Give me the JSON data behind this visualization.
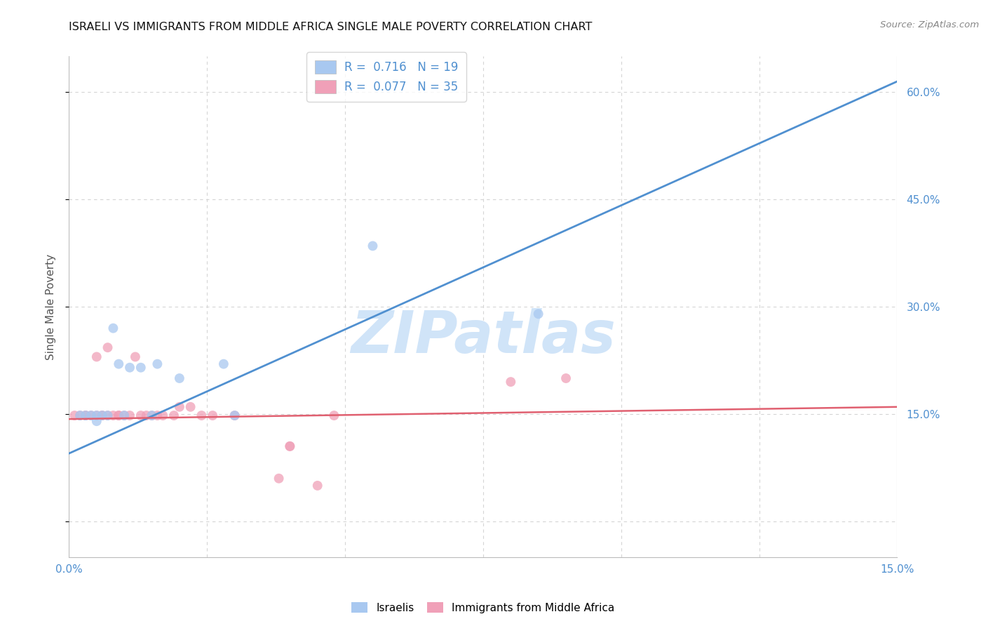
{
  "title": "ISRAELI VS IMMIGRANTS FROM MIDDLE AFRICA SINGLE MALE POVERTY CORRELATION CHART",
  "source": "Source: ZipAtlas.com",
  "ylabel": "Single Male Poverty",
  "xlim": [
    0.0,
    0.15
  ],
  "ylim": [
    -0.05,
    0.65
  ],
  "yticks": [
    0.0,
    0.15,
    0.3,
    0.45,
    0.6
  ],
  "ytick_labels": [
    "",
    "15.0%",
    "30.0%",
    "45.0%",
    "60.0%"
  ],
  "xticks": [
    0.0,
    0.025,
    0.05,
    0.075,
    0.1,
    0.125,
    0.15
  ],
  "xtick_labels": [
    "0.0%",
    "",
    "",
    "",
    "",
    "",
    "15.0%"
  ],
  "israeli_color": "#a8c8f0",
  "immigrant_color": "#f0a0b8",
  "israeli_R": "0.716",
  "israeli_N": "19",
  "immigrant_R": "0.077",
  "immigrant_N": "35",
  "israeli_x": [
    0.002,
    0.003,
    0.004,
    0.005,
    0.005,
    0.006,
    0.007,
    0.008,
    0.009,
    0.01,
    0.011,
    0.013,
    0.015,
    0.016,
    0.02,
    0.028,
    0.03,
    0.055,
    0.085
  ],
  "israeli_y": [
    0.148,
    0.148,
    0.148,
    0.14,
    0.148,
    0.148,
    0.148,
    0.27,
    0.22,
    0.148,
    0.215,
    0.215,
    0.148,
    0.22,
    0.2,
    0.22,
    0.148,
    0.385,
    0.29
  ],
  "immigrant_x": [
    0.001,
    0.002,
    0.003,
    0.003,
    0.004,
    0.005,
    0.005,
    0.006,
    0.006,
    0.007,
    0.007,
    0.008,
    0.009,
    0.009,
    0.01,
    0.011,
    0.012,
    0.013,
    0.014,
    0.015,
    0.016,
    0.017,
    0.019,
    0.02,
    0.022,
    0.024,
    0.026,
    0.03,
    0.038,
    0.04,
    0.04,
    0.045,
    0.048,
    0.08,
    0.09
  ],
  "immigrant_y": [
    0.148,
    0.148,
    0.148,
    0.148,
    0.148,
    0.148,
    0.23,
    0.148,
    0.148,
    0.148,
    0.243,
    0.148,
    0.148,
    0.148,
    0.148,
    0.148,
    0.23,
    0.148,
    0.148,
    0.148,
    0.148,
    0.148,
    0.148,
    0.16,
    0.16,
    0.148,
    0.148,
    0.148,
    0.06,
    0.105,
    0.105,
    0.05,
    0.148,
    0.195,
    0.2
  ],
  "blue_line_x": [
    0.0,
    0.15
  ],
  "blue_line_y": [
    0.095,
    0.615
  ],
  "pink_line_x": [
    0.0,
    0.15
  ],
  "pink_line_y": [
    0.143,
    0.16
  ],
  "blue_line_color": "#5090d0",
  "pink_line_color": "#e06070",
  "grid_color": "#d5d5d5",
  "background": "#ffffff",
  "title_color": "#111111",
  "source_color": "#888888",
  "axis_tick_color": "#5090d0",
  "legend_text_color": "#5090d0",
  "watermark": "ZIPatlas",
  "watermark_color": "#d0e4f8",
  "marker_size": 100,
  "marker_alpha": 0.75
}
